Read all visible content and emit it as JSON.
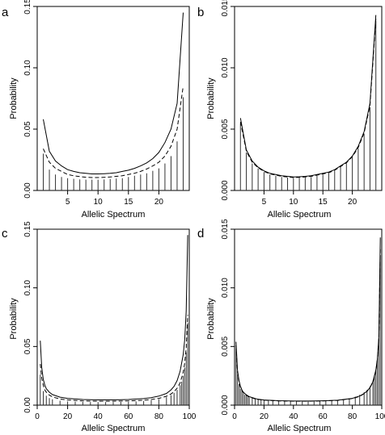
{
  "chart_data": [
    {
      "panel_letter": "a",
      "type": "bar",
      "xlabel": "Allelic Spectrum",
      "ylabel": "Probability",
      "xlim": [
        0,
        25
      ],
      "ylim": [
        0,
        0.15
      ],
      "xticks": [
        5,
        10,
        15,
        20
      ],
      "yticks": [
        0.0,
        0.05,
        0.1,
        0.15
      ],
      "ytick_labels": [
        "0.00",
        "0.05",
        "0.10",
        "0.15"
      ],
      "bars": {
        "x": [
          1,
          2,
          3,
          4,
          5,
          6,
          7,
          8,
          9,
          10,
          11,
          12,
          13,
          14,
          15,
          16,
          17,
          18,
          19,
          20,
          21,
          22,
          23,
          24
        ],
        "values": [
          0.03,
          0.017,
          0.013,
          0.011,
          0.01,
          0.0095,
          0.009,
          0.0088,
          0.0088,
          0.0088,
          0.009,
          0.0093,
          0.0097,
          0.01,
          0.011,
          0.012,
          0.013,
          0.014,
          0.016,
          0.018,
          0.022,
          0.028,
          0.04,
          0.076
        ]
      },
      "series": [
        {
          "style": "solid",
          "x": [
            1,
            2,
            3,
            4,
            5,
            6,
            7,
            8,
            9,
            10,
            11,
            12,
            13,
            14,
            15,
            16,
            17,
            18,
            19,
            20,
            21,
            22,
            23,
            24
          ],
          "values": [
            0.058,
            0.032,
            0.024,
            0.02,
            0.017,
            0.0155,
            0.0145,
            0.014,
            0.0135,
            0.0135,
            0.0137,
            0.014,
            0.0145,
            0.0155,
            0.0165,
            0.018,
            0.02,
            0.0225,
            0.026,
            0.031,
            0.039,
            0.05,
            0.071,
            0.145
          ]
        },
        {
          "style": "dashed",
          "x": [
            1,
            2,
            3,
            4,
            5,
            6,
            7,
            8,
            9,
            10,
            11,
            12,
            13,
            14,
            15,
            16,
            17,
            18,
            19,
            20,
            21,
            22,
            23,
            24
          ],
          "values": [
            0.034,
            0.023,
            0.018,
            0.0155,
            0.013,
            0.012,
            0.0113,
            0.0108,
            0.0105,
            0.0105,
            0.0107,
            0.011,
            0.0115,
            0.012,
            0.013,
            0.014,
            0.0155,
            0.0175,
            0.02,
            0.023,
            0.028,
            0.036,
            0.05,
            0.085
          ]
        }
      ]
    },
    {
      "panel_letter": "b",
      "type": "bar",
      "xlabel": "Allelic Spectrum",
      "ylabel": "Probability",
      "xlim": [
        0,
        25
      ],
      "ylim": [
        0,
        0.015
      ],
      "xticks": [
        5,
        10,
        15,
        20
      ],
      "yticks": [
        0.0,
        0.005,
        0.01,
        0.015
      ],
      "ytick_labels": [
        "0.000",
        "0.005",
        "0.010",
        "0.015"
      ],
      "bars": {
        "x": [
          1,
          2,
          3,
          4,
          5,
          6,
          7,
          8,
          9,
          10,
          11,
          12,
          13,
          14,
          15,
          16,
          17,
          18,
          19,
          20,
          21,
          22,
          23,
          24
        ],
        "values": [
          0.0055,
          0.0031,
          0.0022,
          0.0018,
          0.0015,
          0.0013,
          0.0012,
          0.0011,
          0.00105,
          0.001,
          0.00102,
          0.00105,
          0.0011,
          0.0012,
          0.0013,
          0.0014,
          0.0016,
          0.0019,
          0.0022,
          0.0027,
          0.0034,
          0.0046,
          0.0068,
          0.0138
        ]
      },
      "series": [
        {
          "style": "solid",
          "x": [
            1,
            2,
            3,
            4,
            5,
            6,
            7,
            8,
            9,
            10,
            11,
            12,
            13,
            14,
            15,
            16,
            17,
            18,
            19,
            20,
            21,
            22,
            23,
            24
          ],
          "values": [
            0.0059,
            0.0033,
            0.0024,
            0.0019,
            0.0016,
            0.0014,
            0.0013,
            0.0012,
            0.00115,
            0.0011,
            0.00112,
            0.00115,
            0.0012,
            0.0013,
            0.0014,
            0.0015,
            0.0017,
            0.002,
            0.0023,
            0.0028,
            0.0036,
            0.0048,
            0.0071,
            0.0143
          ]
        },
        {
          "style": "dashed",
          "x": [
            1,
            2,
            3,
            4,
            5,
            6,
            7,
            8,
            9,
            10,
            11,
            12,
            13,
            14,
            15,
            16,
            17,
            18,
            19,
            20,
            21,
            22,
            23,
            24
          ],
          "values": [
            0.0056,
            0.0032,
            0.0023,
            0.00185,
            0.00155,
            0.00135,
            0.00125,
            0.00115,
            0.0011,
            0.00105,
            0.00107,
            0.0011,
            0.00115,
            0.00125,
            0.00135,
            0.00145,
            0.00165,
            0.00195,
            0.00225,
            0.00275,
            0.0035,
            0.0047,
            0.0069,
            0.014
          ]
        }
      ]
    },
    {
      "panel_letter": "c",
      "type": "bar",
      "xlabel": "Allelic Spectrum",
      "ylabel": "Probability",
      "xlim": [
        0,
        100
      ],
      "ylim": [
        0,
        0.15
      ],
      "xticks": [
        0,
        20,
        40,
        60,
        80,
        100
      ],
      "yticks": [
        0.0,
        0.05,
        0.1,
        0.15
      ],
      "ytick_labels": [
        "0.00",
        "0.05",
        "0.10",
        "0.15"
      ],
      "bars": {
        "x": [
          2,
          4,
          6,
          8,
          10,
          15,
          20,
          25,
          30,
          35,
          40,
          45,
          50,
          55,
          60,
          65,
          70,
          75,
          80,
          85,
          88,
          90,
          92,
          94,
          95,
          96,
          97,
          98,
          99
        ],
        "values": [
          0.026,
          0.012,
          0.008,
          0.006,
          0.005,
          0.0038,
          0.0032,
          0.0029,
          0.0027,
          0.0026,
          0.0026,
          0.0026,
          0.0026,
          0.0027,
          0.0029,
          0.0031,
          0.0035,
          0.0041,
          0.005,
          0.0068,
          0.0085,
          0.0105,
          0.013,
          0.017,
          0.02,
          0.025,
          0.032,
          0.045,
          0.07
        ]
      },
      "series": [
        {
          "style": "solid",
          "x": [
            2,
            3,
            4,
            5,
            6,
            8,
            10,
            15,
            20,
            30,
            40,
            50,
            60,
            70,
            75,
            80,
            85,
            88,
            90,
            92,
            94,
            96,
            97,
            98,
            99
          ],
          "values": [
            0.055,
            0.032,
            0.022,
            0.017,
            0.014,
            0.011,
            0.009,
            0.0068,
            0.0058,
            0.0048,
            0.0045,
            0.0045,
            0.0048,
            0.0056,
            0.0064,
            0.0077,
            0.01,
            0.013,
            0.016,
            0.021,
            0.029,
            0.043,
            0.056,
            0.08,
            0.145
          ]
        },
        {
          "style": "dashed",
          "x": [
            2,
            3,
            4,
            5,
            6,
            8,
            10,
            15,
            20,
            30,
            40,
            50,
            60,
            70,
            75,
            80,
            85,
            88,
            90,
            92,
            94,
            96,
            97,
            98,
            99
          ],
          "values": [
            0.035,
            0.023,
            0.017,
            0.013,
            0.011,
            0.0085,
            0.007,
            0.0052,
            0.0044,
            0.0036,
            0.0034,
            0.0034,
            0.0036,
            0.0042,
            0.0048,
            0.0058,
            0.0076,
            0.0095,
            0.0115,
            0.0145,
            0.019,
            0.028,
            0.036,
            0.049,
            0.077
          ]
        }
      ]
    },
    {
      "panel_letter": "d",
      "type": "bar",
      "xlabel": "Allelic Spectrum",
      "ylabel": "Probability",
      "xlim": [
        0,
        100
      ],
      "ylim": [
        0,
        0.015
      ],
      "xticks": [
        0,
        20,
        40,
        60,
        80,
        100
      ],
      "yticks": [
        0.0,
        0.005,
        0.01,
        0.015
      ],
      "ytick_labels": [
        "0.000",
        "0.005",
        "0.010",
        "0.015"
      ],
      "bars": {
        "x": [
          1,
          2,
          3,
          4,
          5,
          6,
          7,
          8,
          9,
          10,
          12,
          14,
          16,
          18,
          20,
          23,
          26,
          30,
          34,
          38,
          42,
          46,
          50,
          54,
          58,
          62,
          66,
          70,
          74,
          78,
          82,
          85,
          88,
          90,
          92,
          94,
          95,
          96,
          97,
          98,
          99
        ],
        "values": [
          0.0048,
          0.0026,
          0.0018,
          0.0014,
          0.0012,
          0.001,
          0.00088,
          0.0008,
          0.00072,
          0.00066,
          0.00058,
          0.00052,
          0.00048,
          0.00045,
          0.00042,
          0.0004,
          0.00038,
          0.00036,
          0.00035,
          0.00034,
          0.00034,
          0.00034,
          0.00034,
          0.00035,
          0.00036,
          0.00038,
          0.0004,
          0.00044,
          0.00049,
          0.00058,
          0.00072,
          0.00088,
          0.0011,
          0.0013,
          0.0016,
          0.0021,
          0.0025,
          0.003,
          0.0039,
          0.0057,
          0.0128
        ]
      },
      "series": [
        {
          "style": "solid",
          "x": [
            1,
            2,
            3,
            4,
            5,
            6,
            8,
            10,
            15,
            20,
            30,
            40,
            50,
            60,
            70,
            80,
            85,
            88,
            90,
            92,
            94,
            96,
            97,
            98,
            99
          ],
          "values": [
            0.0054,
            0.003,
            0.0021,
            0.0016,
            0.0013,
            0.0011,
            0.00088,
            0.00072,
            0.00052,
            0.00044,
            0.00038,
            0.00035,
            0.00035,
            0.00037,
            0.00042,
            0.00058,
            0.00078,
            0.001,
            0.0012,
            0.0015,
            0.002,
            0.003,
            0.0039,
            0.0058,
            0.0143
          ]
        },
        {
          "style": "dashed",
          "x": [
            1,
            2,
            3,
            4,
            5,
            6,
            8,
            10,
            15,
            20,
            30,
            40,
            50,
            60,
            70,
            80,
            85,
            88,
            90,
            92,
            94,
            96,
            97,
            98,
            99
          ],
          "values": [
            0.0051,
            0.0028,
            0.002,
            0.0015,
            0.00125,
            0.00105,
            0.00084,
            0.00069,
            0.0005,
            0.00042,
            0.00036,
            0.00034,
            0.00034,
            0.00036,
            0.0004,
            0.00056,
            0.00075,
            0.00098,
            0.00118,
            0.00148,
            0.00198,
            0.0029,
            0.0038,
            0.0056,
            0.0133
          ]
        }
      ]
    }
  ]
}
